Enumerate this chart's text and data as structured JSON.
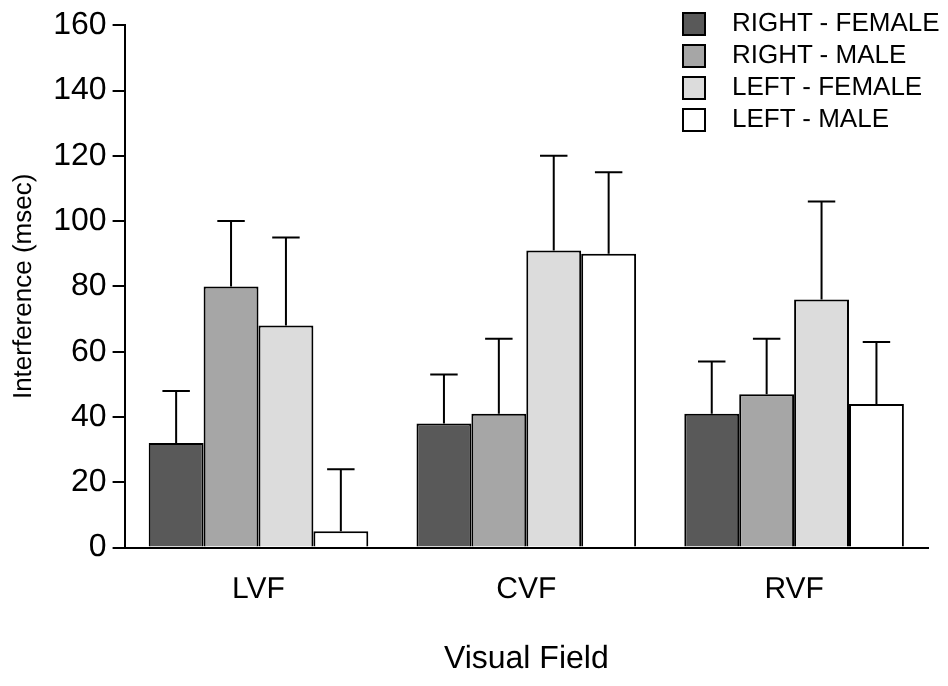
{
  "chart_data": {
    "type": "bar",
    "xlabel": "Visual Field",
    "ylabel": "Interference (msec)",
    "categories": [
      "LVF",
      "CVF",
      "RVF"
    ],
    "series": [
      {
        "name": "RIGHT - FEMALE",
        "color": "#595959",
        "values": [
          32,
          38,
          41
        ],
        "errors": [
          [
            32,
            48
          ],
          [
            38,
            53
          ],
          [
            41,
            57
          ]
        ]
      },
      {
        "name": "RIGHT - MALE",
        "color": "#a6a6a6",
        "values": [
          80,
          41,
          47
        ],
        "errors": [
          [
            80,
            100
          ],
          [
            41,
            64
          ],
          [
            47,
            64
          ]
        ]
      },
      {
        "name": "LEFT - FEMALE",
        "color": "#dcdcdc",
        "values": [
          68,
          91,
          76
        ],
        "errors": [
          [
            68,
            95
          ],
          [
            91,
            120
          ],
          [
            76,
            106
          ]
        ]
      },
      {
        "name": "LEFT - MALE",
        "color": "#ffffff",
        "values": [
          5,
          90,
          44
        ],
        "errors": [
          [
            5,
            24
          ],
          [
            90,
            115
          ],
          [
            44,
            63
          ]
        ]
      }
    ],
    "ylim": [
      0,
      160
    ],
    "yticks": [
      0,
      20,
      40,
      60,
      80,
      100,
      120,
      140,
      160
    ],
    "grid": false,
    "legend": "top right"
  }
}
